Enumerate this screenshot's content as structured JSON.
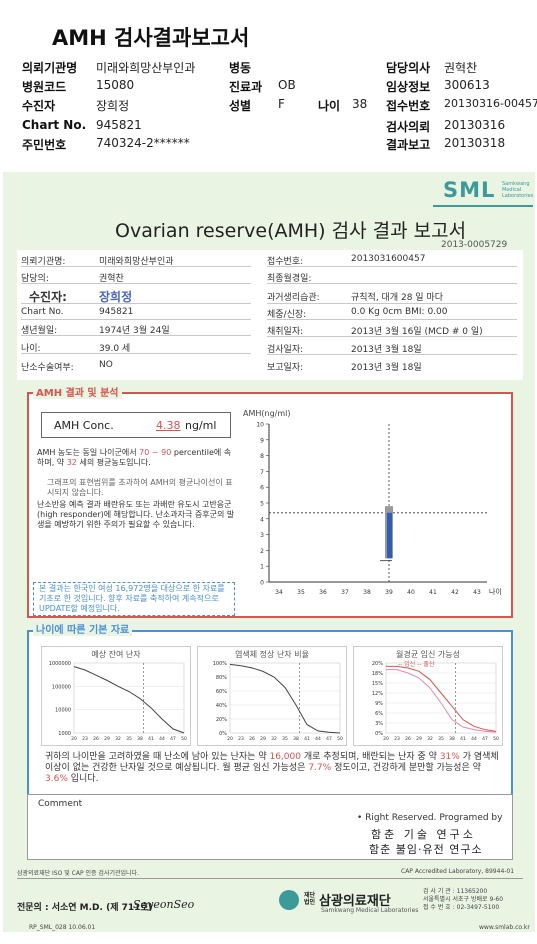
{
  "header": {
    "title": "AMH 검사결과보고서",
    "left": [
      {
        "label": "의뢰기관명",
        "value": "미래와희망산부인과"
      },
      {
        "label": "병원코드",
        "value": "15080"
      },
      {
        "label": "수진자",
        "value": "장희정"
      },
      {
        "label": "Chart No.",
        "value": "945821"
      },
      {
        "label": "주민번호",
        "value": "740324-2******"
      }
    ],
    "mid": [
      {
        "label": "병동",
        "value": ""
      },
      {
        "label": "진료과",
        "value": "OB"
      },
      {
        "label": "성별",
        "value": "F"
      }
    ],
    "age_label": "나이",
    "age_value": "38",
    "right": [
      {
        "label": "담당의사",
        "value": "권혁찬"
      },
      {
        "label": "임상정보",
        "value": "300613"
      },
      {
        "label": "접수번호",
        "value": "20130316-00457"
      },
      {
        "label": "검사의뢰",
        "value": "20130316"
      },
      {
        "label": "결과보고",
        "value": "20130318"
      }
    ]
  },
  "report": {
    "logo": "SML",
    "logo_sub": "Samkwang Medical Laboratories",
    "title": "Ovarian reserve(AMH) 검사 결과 보고서",
    "report_id": "2013-0005729",
    "info_left": [
      {
        "label": "의뢰기관명:",
        "value": "미래와희망산부인과"
      },
      {
        "label": "담당의:",
        "value": "권혁찬"
      },
      {
        "label": "수진자:",
        "value": "장희정"
      },
      {
        "label": "Chart No.",
        "value": "945821"
      },
      {
        "label": "생년월일:",
        "value": "1974년 3월 24일"
      },
      {
        "label": "나이:",
        "value": "39.0 세"
      },
      {
        "label": "난소수술여부:",
        "value": "NO"
      }
    ],
    "info_right": [
      {
        "label": "접수번호:",
        "value": "2013031600457"
      },
      {
        "label": "최종월경일:",
        "value": ""
      },
      {
        "label": "과거생리습관:",
        "value": "규칙적,  대개  28 일 마다"
      },
      {
        "label": "체중/신장:",
        "value": "0.0 Kg        0cm    BMI:    0.00"
      },
      {
        "label": "채취일자:",
        "value": "2013년 3월 16일   (MCD # 0 일)"
      },
      {
        "label": "검사일자:",
        "value": "2013년 3월 18일"
      },
      {
        "label": "보고일자:",
        "value": "2013년 3월 18일"
      }
    ],
    "amh_section_title": "AMH 결과 및 분석",
    "conc_label": "AMH Conc.",
    "conc_value": "4.38",
    "conc_unit": "ng/ml",
    "text1_a": "AMH 농도는 동일 나이군에서",
    "text1_pct_low": "70",
    "text1_tilde": "~",
    "text1_pct_high": "90",
    "text1_b": "percentile에 속하며, 약",
    "text1_age": "32",
    "text1_c": "세의 평균농도입니다.",
    "text2": "그래프의 표현범위를 초과하여 AMH의 평균나이선이 표시되지 않습니다.",
    "text3": "난소반응 예측 결과 배란유도 또는 과배란 유도시 고반응군 (high responder)에 해당합니다. 난소과자극 증후군의 발생을 예방하기 위한 주의가 필요할 수 있습니다.",
    "text4": "본 결과는 한국인 여성 16,972명을 대상으로 한 자료를 기초로 한 것입니다. 향후 자료를 축적하여 계속적으로 UPDATE할 예정입니다.",
    "age_section_title": "나이에 따른 기본 자료",
    "mini1_title": "예상 잔여 난자",
    "mini2_title": "염색체 정상 난자 비율",
    "mini3_title": "월경균 임신 가능성",
    "mini3_legend": "-- 임신    -- 출산",
    "summary_a": "귀하의 나이만을 고려하였을 때 난소에 남아 있는 난자는 약",
    "summary_eggs": "16,000",
    "summary_b": "개로 추정되며, 배란되는 난자 중 약",
    "summary_pct": "31%",
    "summary_c": "가 염색체이상이 없는 건강한 난자일 것으로 예상됩니다. 월 평균 임신 가능성은",
    "summary_preg": "7.7%",
    "summary_d": "정도이고, 건강하게 분만할 가능성은 약",
    "summary_birth": "3.6%",
    "summary_e": "입니다.",
    "comment_label": "Comment",
    "rights": "• Right Reserved. Programed by",
    "inst1": "함춘 기술 연구소",
    "inst2": "함춘 불임·유전 연구소",
    "footnote": "삼광의료재단 ISO 및 CAP 인증 검사기관입니다.",
    "cap": "CAP  Accredited  Laboratory,  89944-01",
    "doctor": "전문의 : 서소연 M.D. (제 711호)",
    "signature": "SoyeonSeo",
    "foundation_pre": "재단법인",
    "foundation": "삼광의료재단",
    "foundation_sub": "Samkwang Medical Laboratories",
    "contact": [
      "검 사 기 관 : 11365200",
      "서울특별시 서초구 방배로 9-60",
      "접 수 번 호 : 02-3497-5100"
    ],
    "form_code": "RP_SML_028  10.06.01",
    "website": "www.smlab.co.kr"
  },
  "chart_data": [
    {
      "type": "scatter",
      "title": "",
      "ylabel": "AMH(ng/ml)",
      "xlabel": "나이",
      "categories": [
        "34",
        "35",
        "36",
        "37",
        "38",
        "39",
        "40",
        "41",
        "42",
        "43"
      ],
      "ylim": [
        0,
        10
      ],
      "yticks": [
        0,
        1,
        2,
        3,
        4,
        5,
        6,
        7,
        8,
        9,
        10
      ],
      "patient": {
        "age": 39,
        "amh": 4.38
      },
      "range_low": 1.5,
      "range_high": 4.8,
      "range_mid": 1.35,
      "reference_line": 4.38
    },
    {
      "type": "line",
      "title": "예상 잔여 난자",
      "x": [
        20,
        23,
        26,
        29,
        32,
        35,
        38,
        41,
        44,
        47,
        50
      ],
      "yticks": [
        "1000000",
        "100000",
        "10000",
        "1000"
      ],
      "y": [
        700000,
        500000,
        300000,
        180000,
        100000,
        60000,
        30000,
        12000,
        4000,
        1500,
        1000
      ],
      "marker_age": 39
    },
    {
      "type": "line",
      "title": "염색체 정상 난자 비율",
      "x": [
        20,
        23,
        26,
        29,
        32,
        35,
        38,
        41,
        44,
        47,
        50
      ],
      "yticks": [
        "100%",
        "80%",
        "60%",
        "40%",
        "20%",
        "0%"
      ],
      "y": [
        98,
        96,
        93,
        88,
        80,
        65,
        40,
        12,
        3,
        1,
        0
      ],
      "marker_age": 39
    },
    {
      "type": "line",
      "title": "월경균 임신 가능성",
      "x": [
        20,
        23,
        26,
        29,
        32,
        35,
        38,
        41,
        44,
        47,
        50
      ],
      "yticks": [
        "20%",
        "18%",
        "15%",
        "12%",
        "9%",
        "6%",
        "3%",
        "0%"
      ],
      "series": [
        {
          "name": "임신",
          "values": [
            20,
            20,
            19.5,
            18.5,
            16,
            12,
            8,
            4,
            2,
            1,
            0.5
          ]
        },
        {
          "name": "출산",
          "values": [
            19,
            19,
            18,
            16.5,
            13.5,
            9,
            4,
            1.8,
            1,
            0.5,
            0.3
          ]
        }
      ],
      "marker_age": 39
    }
  ]
}
